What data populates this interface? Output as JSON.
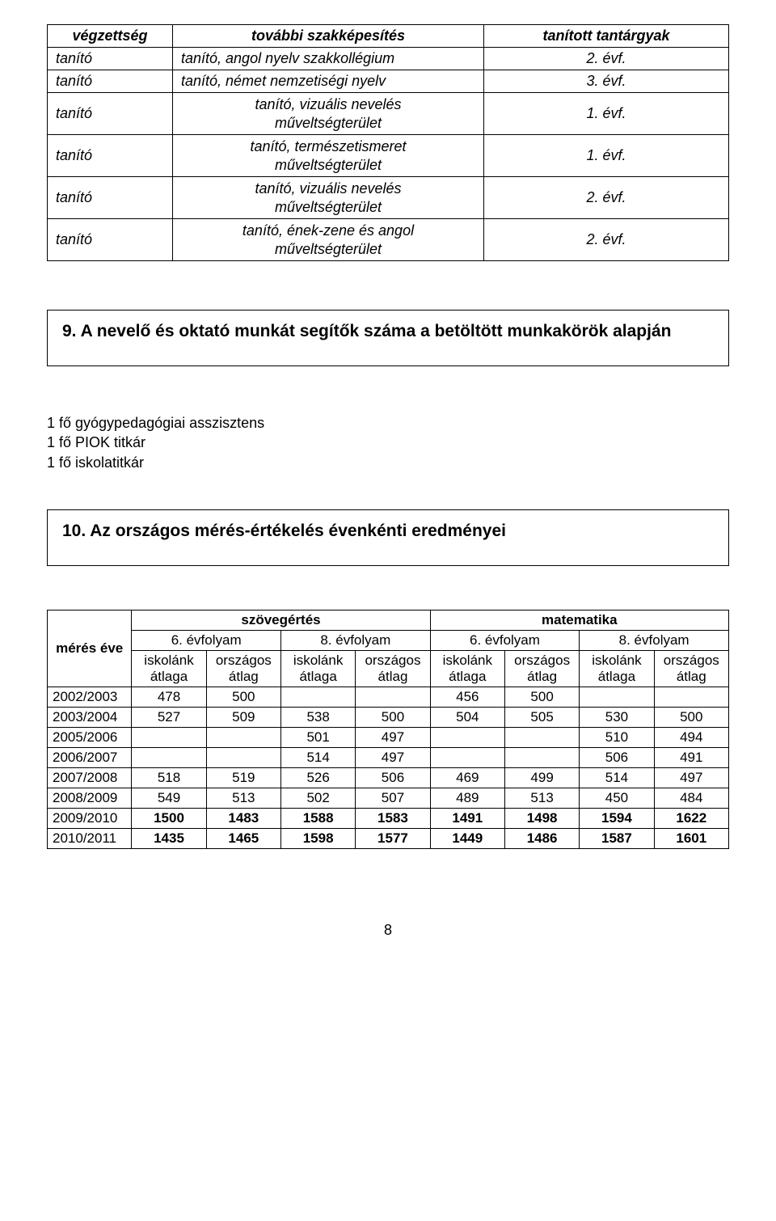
{
  "qual_table": {
    "headers": {
      "col1": "végzettség",
      "col2": "további szakképesítés",
      "col3": "tanított tantárgyak"
    },
    "rows": [
      {
        "col1": "tanító",
        "col2": "tanító, angol nyelv szakkollégium",
        "col3": "2. évf.",
        "twoline": false
      },
      {
        "col1": "tanító",
        "col2": "tanító, német nemzetiségi nyelv",
        "col3": "3. évf.",
        "twoline": false
      },
      {
        "col1": "tanító",
        "col2": "tanító, vizuális nevelés\nműveltségterület",
        "col3": "1. évf.",
        "twoline": true
      },
      {
        "col1": "tanító",
        "col2": "tanító, természetismeret\nműveltségterület",
        "col3": "1. évf.",
        "twoline": true
      },
      {
        "col1": "tanító",
        "col2": "tanító, vizuális nevelés\nműveltségterület",
        "col3": "2. évf.",
        "twoline": true
      },
      {
        "col1": "tanító",
        "col2": "tanító, ének-zene és angol\nműveltségterület",
        "col3": "2. évf.",
        "twoline": true
      }
    ]
  },
  "section9_title": "9.  A nevelő és oktató munkát segítők száma a betöltött munkakörök alapján",
  "staff_list": {
    "lines": [
      "1 fő gyógypedagógiai asszisztens",
      "1 fő PIOK titkár",
      "1 fő iskolatitkár"
    ]
  },
  "section10_title": "10. Az országos mérés-értékelés évenkénti eredményei",
  "meas_table": {
    "category_headers": {
      "left": "szövegértés",
      "right": "matematika"
    },
    "grade_headers": {
      "g1": "6. évfolyam",
      "g2": "8. évfolyam",
      "g3": "6. évfolyam",
      "g4": "8. évfolyam"
    },
    "pair_headers": {
      "school": "iskolánk átlaga",
      "country": "országos átlag"
    },
    "row_label": "mérés éve",
    "rows": [
      {
        "year": "2002/2003",
        "v": [
          "478",
          "500",
          "",
          "",
          "456",
          "500",
          "",
          ""
        ],
        "bold": false
      },
      {
        "year": "2003/2004",
        "v": [
          "527",
          "509",
          "538",
          "500",
          "504",
          "505",
          "530",
          "500"
        ],
        "bold": false
      },
      {
        "year": "2005/2006",
        "v": [
          "",
          "",
          "501",
          "497",
          "",
          "",
          "510",
          "494"
        ],
        "bold": false
      },
      {
        "year": "2006/2007",
        "v": [
          "",
          "",
          "514",
          "497",
          "",
          "",
          "506",
          "491"
        ],
        "bold": false
      },
      {
        "year": "2007/2008",
        "v": [
          "518",
          "519",
          "526",
          "506",
          "469",
          "499",
          "514",
          "497"
        ],
        "bold": false
      },
      {
        "year": "2008/2009",
        "v": [
          "549",
          "513",
          "502",
          "507",
          "489",
          "513",
          "450",
          "484"
        ],
        "bold": false
      },
      {
        "year": "2009/2010",
        "v": [
          "1500",
          "1483",
          "1588",
          "1583",
          "1491",
          "1498",
          "1594",
          "1622"
        ],
        "bold": true
      },
      {
        "year": "2010/2011",
        "v": [
          "1435",
          "1465",
          "1598",
          "1577",
          "1449",
          "1486",
          "1587",
          "1601"
        ],
        "bold": true
      }
    ]
  },
  "page_number": "8"
}
